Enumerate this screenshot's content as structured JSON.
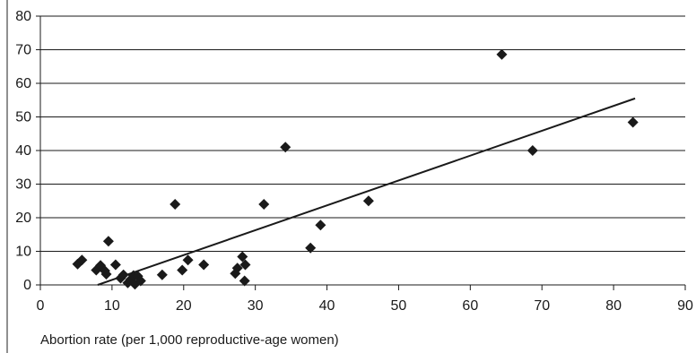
{
  "chart_data": {
    "type": "scatter",
    "title": "",
    "xlabel": "Abortion rate (per 1,000 reproductive-age women)",
    "ylabel": "",
    "xlim": [
      0,
      90
    ],
    "ylim": [
      0,
      80
    ],
    "x_ticks": [
      0,
      10,
      20,
      30,
      40,
      50,
      60,
      70,
      80,
      90
    ],
    "y_ticks": [
      0,
      10,
      20,
      30,
      40,
      50,
      60,
      70,
      80
    ],
    "grid": "horizontal",
    "legend": "none",
    "marker": "diamond",
    "marker_color": "#1a1a1a",
    "gridline_color": "#1a1a1a",
    "trendline": {
      "type": "linear",
      "x": [
        8,
        83
      ],
      "y": [
        0,
        55.5
      ]
    },
    "points": [
      {
        "x": 5.2,
        "y": 6.2
      },
      {
        "x": 5.8,
        "y": 7.4
      },
      {
        "x": 7.8,
        "y": 4.4
      },
      {
        "x": 8.4,
        "y": 5.8
      },
      {
        "x": 9.0,
        "y": 4.2
      },
      {
        "x": 9.2,
        "y": 3.2
      },
      {
        "x": 9.5,
        "y": 13.0
      },
      {
        "x": 10.5,
        "y": 6.0
      },
      {
        "x": 11.2,
        "y": 2.0
      },
      {
        "x": 11.6,
        "y": 3.0
      },
      {
        "x": 12.2,
        "y": 0.6
      },
      {
        "x": 12.6,
        "y": 1.6
      },
      {
        "x": 13.0,
        "y": 2.8
      },
      {
        "x": 13.2,
        "y": 0.2
      },
      {
        "x": 13.6,
        "y": 2.6
      },
      {
        "x": 14.0,
        "y": 1.2
      },
      {
        "x": 17.0,
        "y": 3.0
      },
      {
        "x": 18.8,
        "y": 24.0
      },
      {
        "x": 19.8,
        "y": 4.4
      },
      {
        "x": 20.6,
        "y": 7.4
      },
      {
        "x": 22.8,
        "y": 6.0
      },
      {
        "x": 27.2,
        "y": 3.4
      },
      {
        "x": 27.5,
        "y": 5.0
      },
      {
        "x": 28.2,
        "y": 8.4
      },
      {
        "x": 28.6,
        "y": 6.0
      },
      {
        "x": 28.5,
        "y": 1.2
      },
      {
        "x": 31.2,
        "y": 24.0
      },
      {
        "x": 34.2,
        "y": 41.0
      },
      {
        "x": 37.7,
        "y": 11.0
      },
      {
        "x": 39.1,
        "y": 17.8
      },
      {
        "x": 45.8,
        "y": 25.0
      },
      {
        "x": 64.4,
        "y": 68.6
      },
      {
        "x": 68.7,
        "y": 40.0
      },
      {
        "x": 82.7,
        "y": 48.4
      }
    ]
  }
}
